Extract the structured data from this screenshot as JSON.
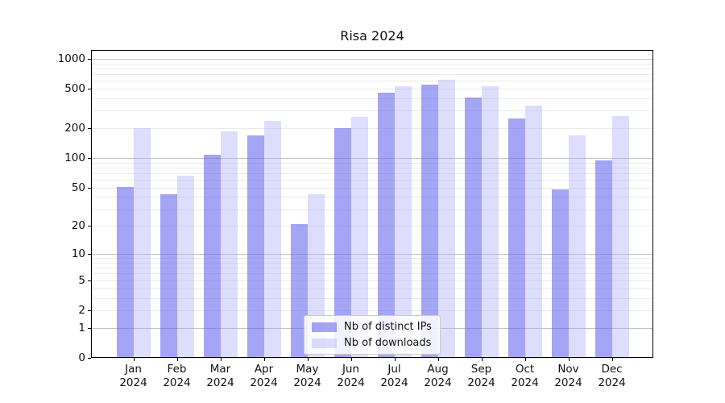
{
  "title": "Risa 2024",
  "legend": {
    "items": [
      {
        "label": "Nb of distinct IPs",
        "color": "rgba(100,100,238,0.58)"
      },
      {
        "label": "Nb of downloads",
        "color": "rgba(170,170,250,0.40)"
      }
    ],
    "position": "lower center"
  },
  "colors": {
    "bar_distinct_ips": "rgba(100,100,238,0.58)",
    "bar_downloads": "rgba(170,170,250,0.40)",
    "grid_major": "#c2c2c2",
    "grid_minor": "#ebebeb",
    "frame": "#000000",
    "text": "#111111",
    "background": "#ffffff"
  },
  "chart_data": {
    "type": "bar",
    "title": "Risa 2024",
    "categories": [
      "Jan 2024",
      "Feb 2024",
      "Mar 2024",
      "Apr 2024",
      "May 2024",
      "Jun 2024",
      "Jul 2024",
      "Aug 2024",
      "Sep 2024",
      "Oct 2024",
      "Nov 2024",
      "Dec 2024"
    ],
    "series": [
      {
        "name": "Nb of distinct IPs",
        "color": "rgba(100,100,238,0.58)",
        "values": [
          51,
          43,
          107,
          168,
          21,
          200,
          460,
          550,
          405,
          250,
          48,
          95
        ]
      },
      {
        "name": "Nb of downloads",
        "color": "rgba(170,170,250,0.40)",
        "values": [
          200,
          66,
          185,
          235,
          43,
          260,
          530,
          615,
          525,
          340,
          170,
          265
        ]
      }
    ],
    "xlabel": "",
    "ylabel": "",
    "yscale": "log1p",
    "ylim": [
      0,
      1224
    ],
    "y_ticks": [
      0,
      1,
      2,
      5,
      10,
      20,
      50,
      100,
      200,
      500,
      1000
    ],
    "grid_major_values": [
      1,
      10,
      100,
      1000
    ],
    "grid_minor_values": [
      2,
      3,
      4,
      5,
      6,
      7,
      8,
      9,
      20,
      30,
      40,
      50,
      60,
      70,
      80,
      90,
      200,
      300,
      400,
      500,
      600,
      700,
      800,
      900
    ],
    "grid": "horizontal",
    "legend_position": "lower center"
  }
}
